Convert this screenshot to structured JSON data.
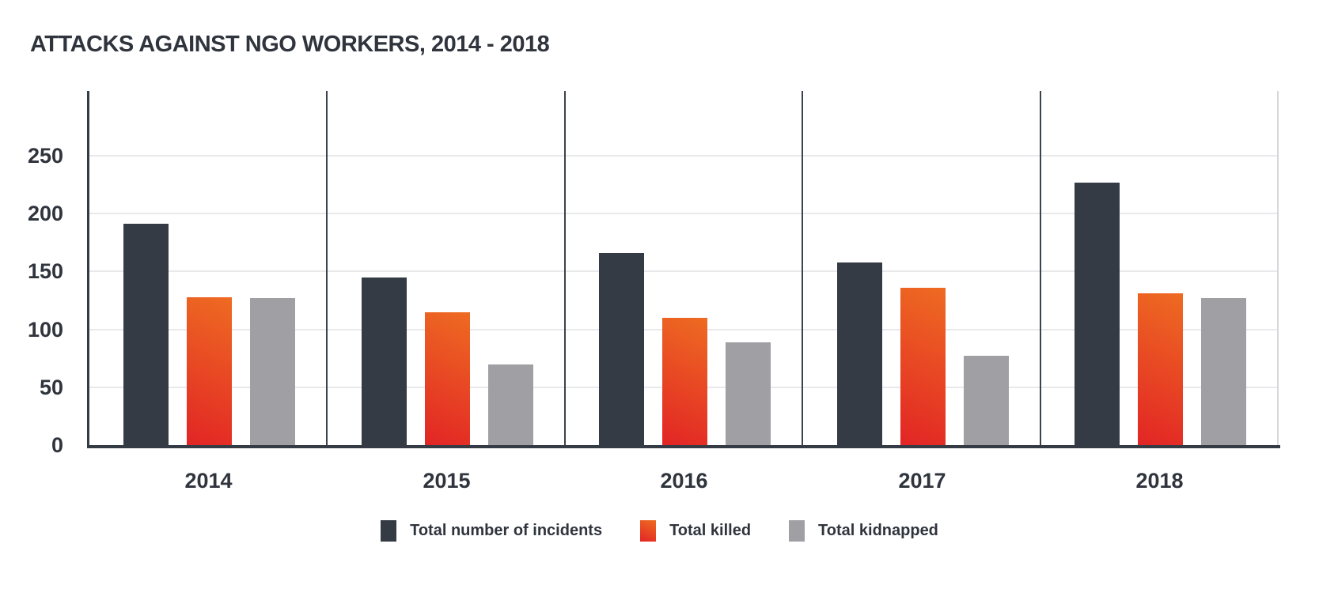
{
  "chart_data": {
    "type": "bar",
    "title": "ATTACKS AGAINST NGO WORKERS, 2014 - 2018",
    "categories": [
      "2014",
      "2015",
      "2016",
      "2017",
      "2018"
    ],
    "series": [
      {
        "name": "Total number of incidents",
        "color": "#353b44",
        "values": [
          191,
          145,
          166,
          158,
          227
        ]
      },
      {
        "name": "Total killed",
        "gradient": [
          "#ee6b22",
          "#e22525"
        ],
        "values": [
          128,
          115,
          110,
          136,
          131
        ]
      },
      {
        "name": "Total kidnapped",
        "color": "#a09fa4",
        "values": [
          127,
          70,
          89,
          77,
          127
        ]
      }
    ],
    "y_ticks": [
      0,
      50,
      100,
      150,
      200,
      250
    ],
    "ylim": [
      0,
      306
    ],
    "grid": "horizontal-light",
    "legend_position": "bottom-center",
    "group_separators": true
  },
  "colors": {
    "text": "#2f343d",
    "bar_dark": "#353b44",
    "bar_red_top": "#ee6b22",
    "bar_red_bottom": "#e22525",
    "bar_gray": "#a09fa4",
    "gridline": "#e9e9ec",
    "separator": "#3c424b",
    "axis": "#353b44",
    "plot_right_border": "#d6d6db"
  }
}
